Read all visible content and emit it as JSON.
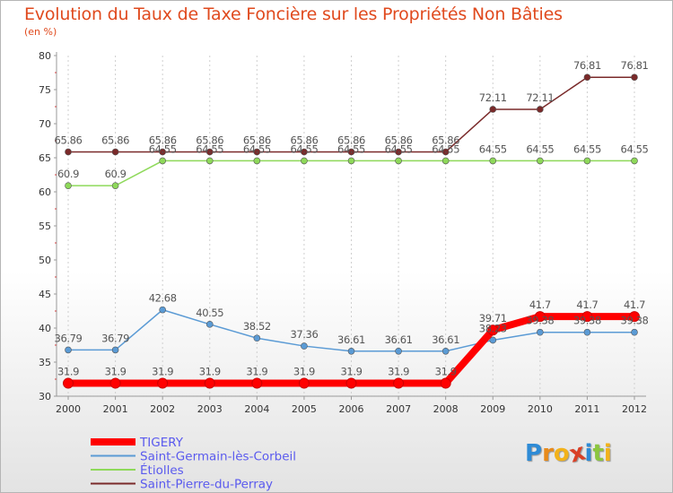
{
  "title": "Evolution du Taux de Taxe Foncière sur les Propriétés Non Bâties",
  "subtitle": "(en %)",
  "logo": {
    "text": "Proxiti",
    "letters": [
      "P",
      "r",
      "o",
      "x",
      "i",
      "t",
      "i"
    ],
    "colors": [
      "#2e8bd6",
      "#e88a1a",
      "#f2b21a",
      "#d94026",
      "#2e8bd6",
      "#8cc63f",
      "#f2b21a"
    ]
  },
  "chart_data": {
    "type": "line",
    "title": "Evolution du Taux de Taxe Foncière sur les Propriétés Non Bâties",
    "ylabel": "(en %)",
    "xlabel": "",
    "ylim": [
      30,
      80
    ],
    "yticks": [
      30,
      35,
      40,
      45,
      50,
      55,
      60,
      65,
      70,
      75,
      80
    ],
    "categories": [
      "2000",
      "2001",
      "2002",
      "2003",
      "2004",
      "2005",
      "2006",
      "2007",
      "2008",
      "2009",
      "2010",
      "2011",
      "2012"
    ],
    "grid": "vertical",
    "legend_position": "bottom-left",
    "series": [
      {
        "name": "TIGERY",
        "color": "#ff0000",
        "values": [
          31.9,
          31.9,
          31.9,
          31.9,
          31.9,
          31.9,
          31.9,
          31.9,
          31.9,
          39.71,
          41.7,
          41.7,
          41.7
        ],
        "labels": [
          "31.9",
          "31.9",
          "31.9",
          "31.9",
          "31.9",
          "31.9",
          "31.9",
          "31.9",
          "31.9",
          "39.71",
          "41.7",
          "41.7",
          "41.7"
        ]
      },
      {
        "name": "Saint-Germain-lès-Corbeil",
        "color": "#5b9bd5",
        "values": [
          36.79,
          36.79,
          42.68,
          40.55,
          38.52,
          37.36,
          36.61,
          36.61,
          36.61,
          38.23,
          39.38,
          39.38,
          39.38
        ],
        "labels": [
          "36.79",
          "36.79",
          "42.68",
          "40.55",
          "38.52",
          "37.36",
          "36.61",
          "36.61",
          "36.61",
          "38.23",
          "39.38",
          "39.38",
          "39.38"
        ]
      },
      {
        "name": "Étiolles",
        "color": "#8ed95a",
        "values": [
          60.9,
          60.9,
          64.55,
          64.55,
          64.55,
          64.55,
          64.55,
          64.55,
          64.55,
          64.55,
          64.55,
          64.55,
          64.55
        ],
        "labels": [
          "60.9",
          "60.9",
          "64.55",
          "64.55",
          "64.55",
          "64.55",
          "64.55",
          "64.55",
          "64.55",
          "64.55",
          "64.55",
          "64.55",
          "64.55"
        ]
      },
      {
        "name": "Saint-Pierre-du-Perray",
        "color": "#7a2a2a",
        "values": [
          65.86,
          65.86,
          65.86,
          65.86,
          65.86,
          65.86,
          65.86,
          65.86,
          65.86,
          72.11,
          72.11,
          76.81,
          76.81
        ],
        "labels": [
          "65.86",
          "65.86",
          "65.86",
          "65.86",
          "65.86",
          "65.86",
          "65.86",
          "65.86",
          "65.86",
          "72.11",
          "72.11",
          "76.81",
          "76.81"
        ]
      }
    ]
  }
}
